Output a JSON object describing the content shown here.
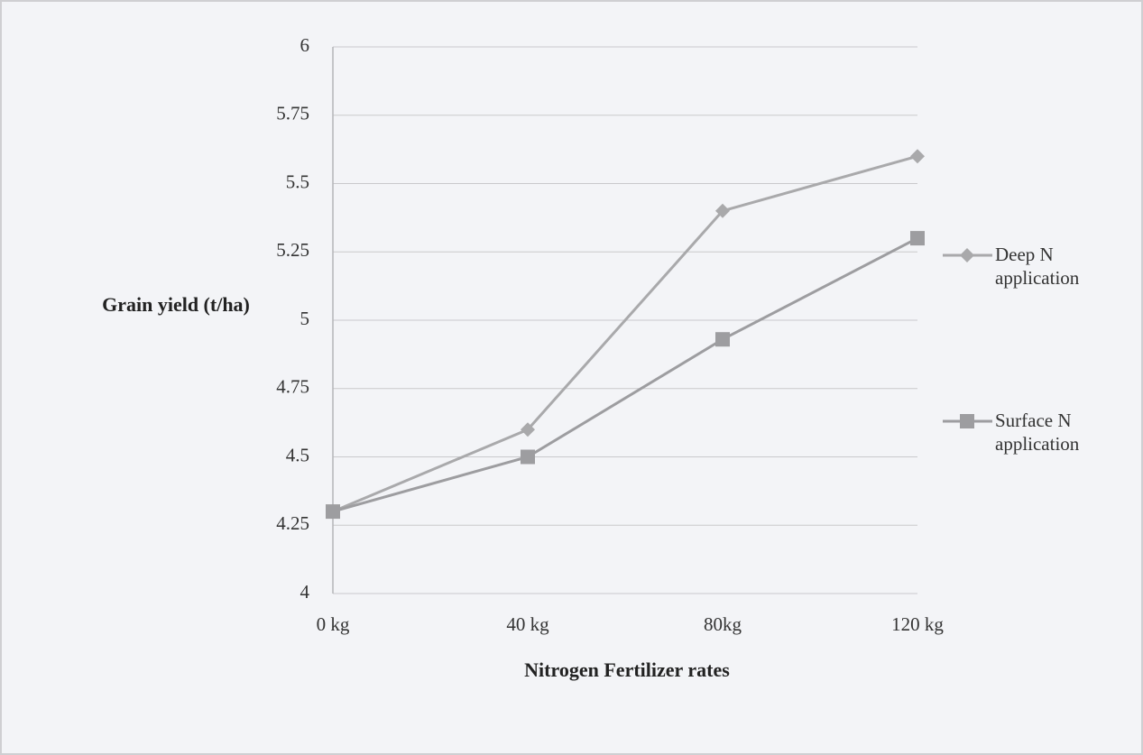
{
  "chart_data": {
    "type": "line",
    "y_label": "Grain yield (t/ha)",
    "x_label": "Nitrogen Fertilizer rates",
    "categories": [
      "0 kg",
      "40 kg",
      "80kg",
      "120 kg"
    ],
    "series": [
      {
        "name": "Deep N application",
        "color": "#a9a9ab",
        "marker": "diamond",
        "values": [
          4.3,
          4.6,
          5.4,
          5.6
        ]
      },
      {
        "name": "Surface N application",
        "color": "#9d9da0",
        "marker": "square",
        "values": [
          4.3,
          4.5,
          4.93,
          5.3
        ]
      }
    ],
    "ylim": [
      4,
      6
    ],
    "yticks": [
      4,
      4.25,
      4.5,
      4.75,
      5,
      5.25,
      5.5,
      5.75,
      6
    ],
    "grid": true,
    "legend": "right"
  }
}
